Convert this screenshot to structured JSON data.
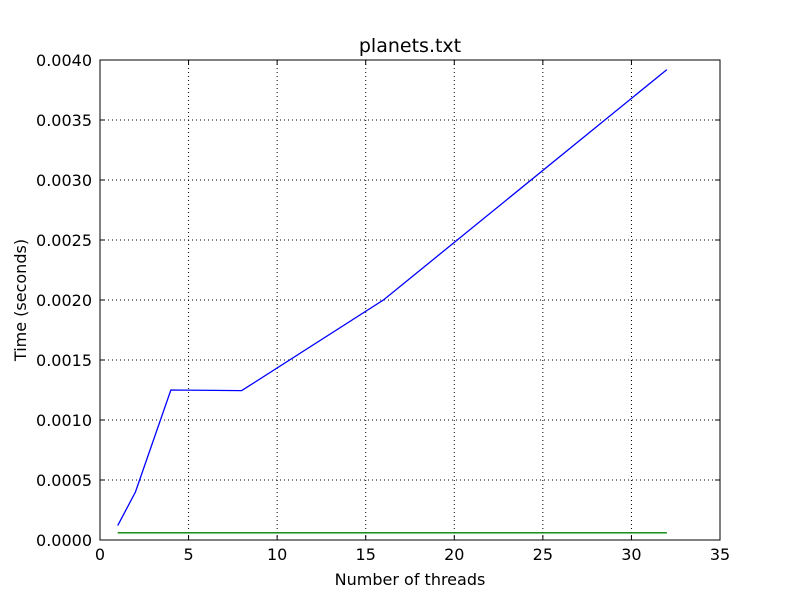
{
  "chart_data": {
    "type": "line",
    "title": "planets.txt",
    "xlabel": "Number of threads",
    "ylabel": "Time (seconds)",
    "xlim": [
      0,
      35
    ],
    "ylim": [
      0,
      0.004
    ],
    "x_ticks": [
      0,
      5,
      10,
      15,
      20,
      25,
      30,
      35
    ],
    "x_tick_labels": [
      "0",
      "5",
      "10",
      "15",
      "20",
      "25",
      "30",
      "35"
    ],
    "y_ticks": [
      0,
      0.0005,
      0.001,
      0.0015,
      0.002,
      0.0025,
      0.003,
      0.0035,
      0.004
    ],
    "y_tick_labels": [
      "0.0000",
      "0.0005",
      "0.0010",
      "0.0015",
      "0.0020",
      "0.0025",
      "0.0030",
      "0.0035",
      "0.0040"
    ],
    "grid": true,
    "series": [
      {
        "color": "#0000ff",
        "points": [
          {
            "x": 1,
            "y": 0.00012
          },
          {
            "x": 2,
            "y": 0.0004
          },
          {
            "x": 4,
            "y": 0.00125
          },
          {
            "x": 8,
            "y": 0.001245
          },
          {
            "x": 16,
            "y": 0.002
          },
          {
            "x": 32,
            "y": 0.00392
          }
        ]
      },
      {
        "color": "#008000",
        "points": [
          {
            "x": 1,
            "y": 6e-05
          },
          {
            "x": 2,
            "y": 6e-05
          },
          {
            "x": 4,
            "y": 6e-05
          },
          {
            "x": 8,
            "y": 6e-05
          },
          {
            "x": 16,
            "y": 6e-05
          },
          {
            "x": 32,
            "y": 6e-05
          }
        ]
      }
    ]
  }
}
